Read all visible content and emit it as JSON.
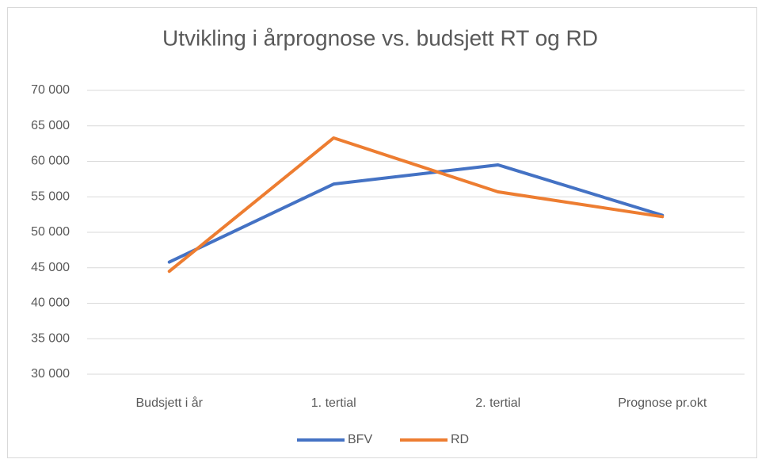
{
  "chart_data": {
    "type": "line",
    "title": "Utvikling i årprognose vs. budsjett RT og RD",
    "categories": [
      "Budsjett i år",
      "1. tertial",
      "2. tertial",
      "Prognose  pr.okt"
    ],
    "series": [
      {
        "name": "BFV",
        "color": "#4472c4",
        "values": [
          45800,
          56800,
          59500,
          52400
        ]
      },
      {
        "name": "RD",
        "color": "#ed7d31",
        "values": [
          44500,
          63300,
          55700,
          52200
        ]
      }
    ],
    "ylim": [
      30000,
      70000
    ],
    "yticks": [
      {
        "value": 30000,
        "label": "30 000"
      },
      {
        "value": 35000,
        "label": "35 000"
      },
      {
        "value": 40000,
        "label": "40 000"
      },
      {
        "value": 45000,
        "label": "45 000"
      },
      {
        "value": 50000,
        "label": "50 000"
      },
      {
        "value": 55000,
        "label": "55 000"
      },
      {
        "value": 60000,
        "label": "60 000"
      },
      {
        "value": 65000,
        "label": "65 000"
      },
      {
        "value": 70000,
        "label": "70 000"
      }
    ],
    "grid": true,
    "legend": "bottom"
  }
}
